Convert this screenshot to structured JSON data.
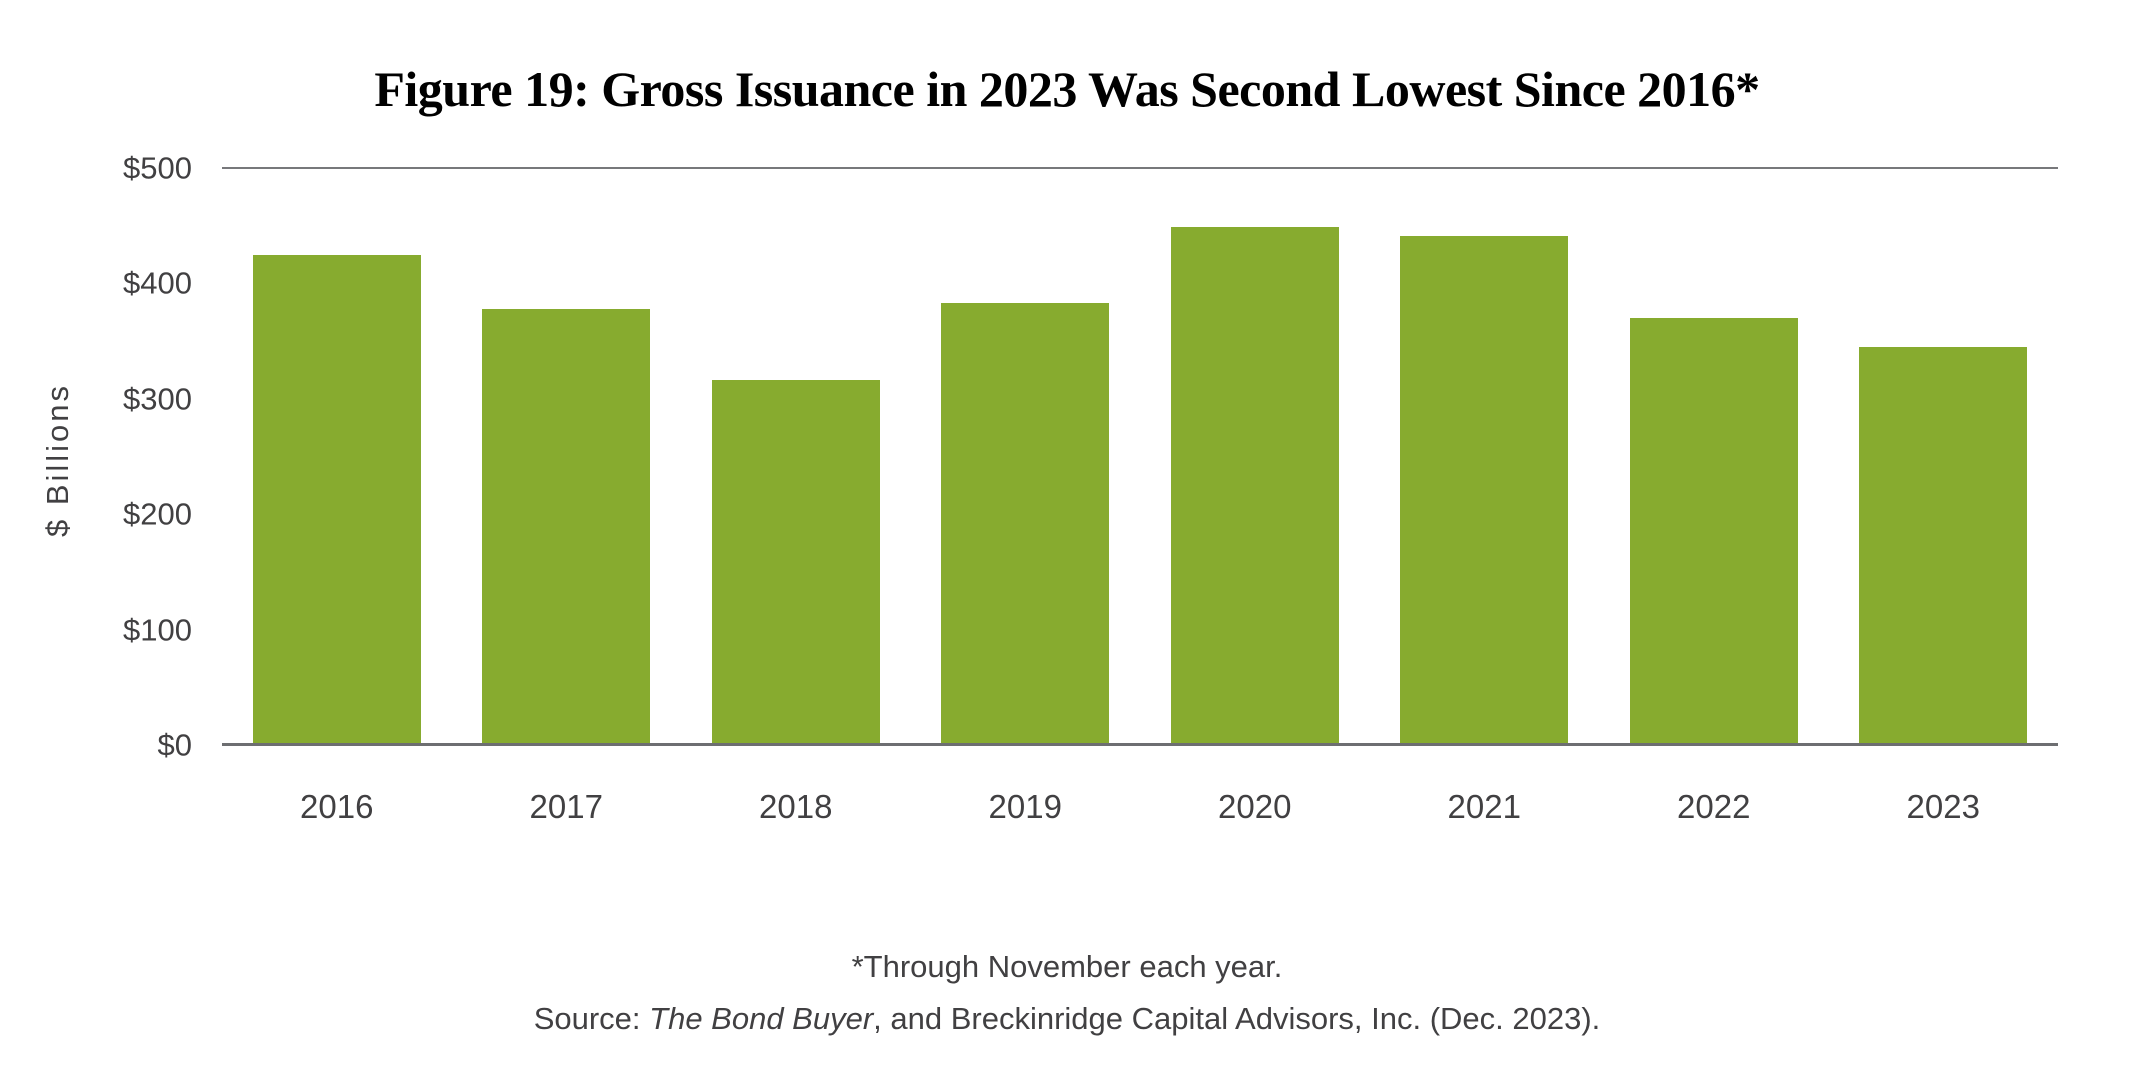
{
  "title": "Figure 19: Gross Issuance in 2023 Was Second Lowest Since 2016*",
  "chart_data": {
    "type": "bar",
    "categories": [
      "2016",
      "2017",
      "2018",
      "2019",
      "2020",
      "2021",
      "2022",
      "2023"
    ],
    "values": [
      425,
      378,
      316,
      383,
      449,
      441,
      370,
      345
    ],
    "title": "Figure 19: Gross Issuance in 2023 Was Second Lowest Since 2016*",
    "xlabel": "",
    "ylabel": "$ Billions",
    "ylim": [
      0,
      500
    ],
    "y_ticks": [
      {
        "label": "$500",
        "value": 500
      },
      {
        "label": "$400",
        "value": 400
      },
      {
        "label": "$300",
        "value": 300
      },
      {
        "label": "$200",
        "value": 200
      },
      {
        "label": "$100",
        "value": 100
      },
      {
        "label": "$0",
        "value": 0
      }
    ],
    "grid": "top gridline and zero baseline only",
    "legend_position": "none",
    "bar_color": "#87ab2f",
    "axis_line_color": "#6d6e71"
  },
  "footnote": "*Through November each year.",
  "source": {
    "prefix": "Source: ",
    "italic": "The Bond Buyer",
    "suffix": ", and Breckinridge Capital Advisors, Inc. (Dec. 2023)."
  },
  "colors": {
    "bar_green": "#87ab2f",
    "axis_gray": "#6d6e71",
    "text_gray": "#414042",
    "title_black": "#000000",
    "background": "#ffffff"
  }
}
